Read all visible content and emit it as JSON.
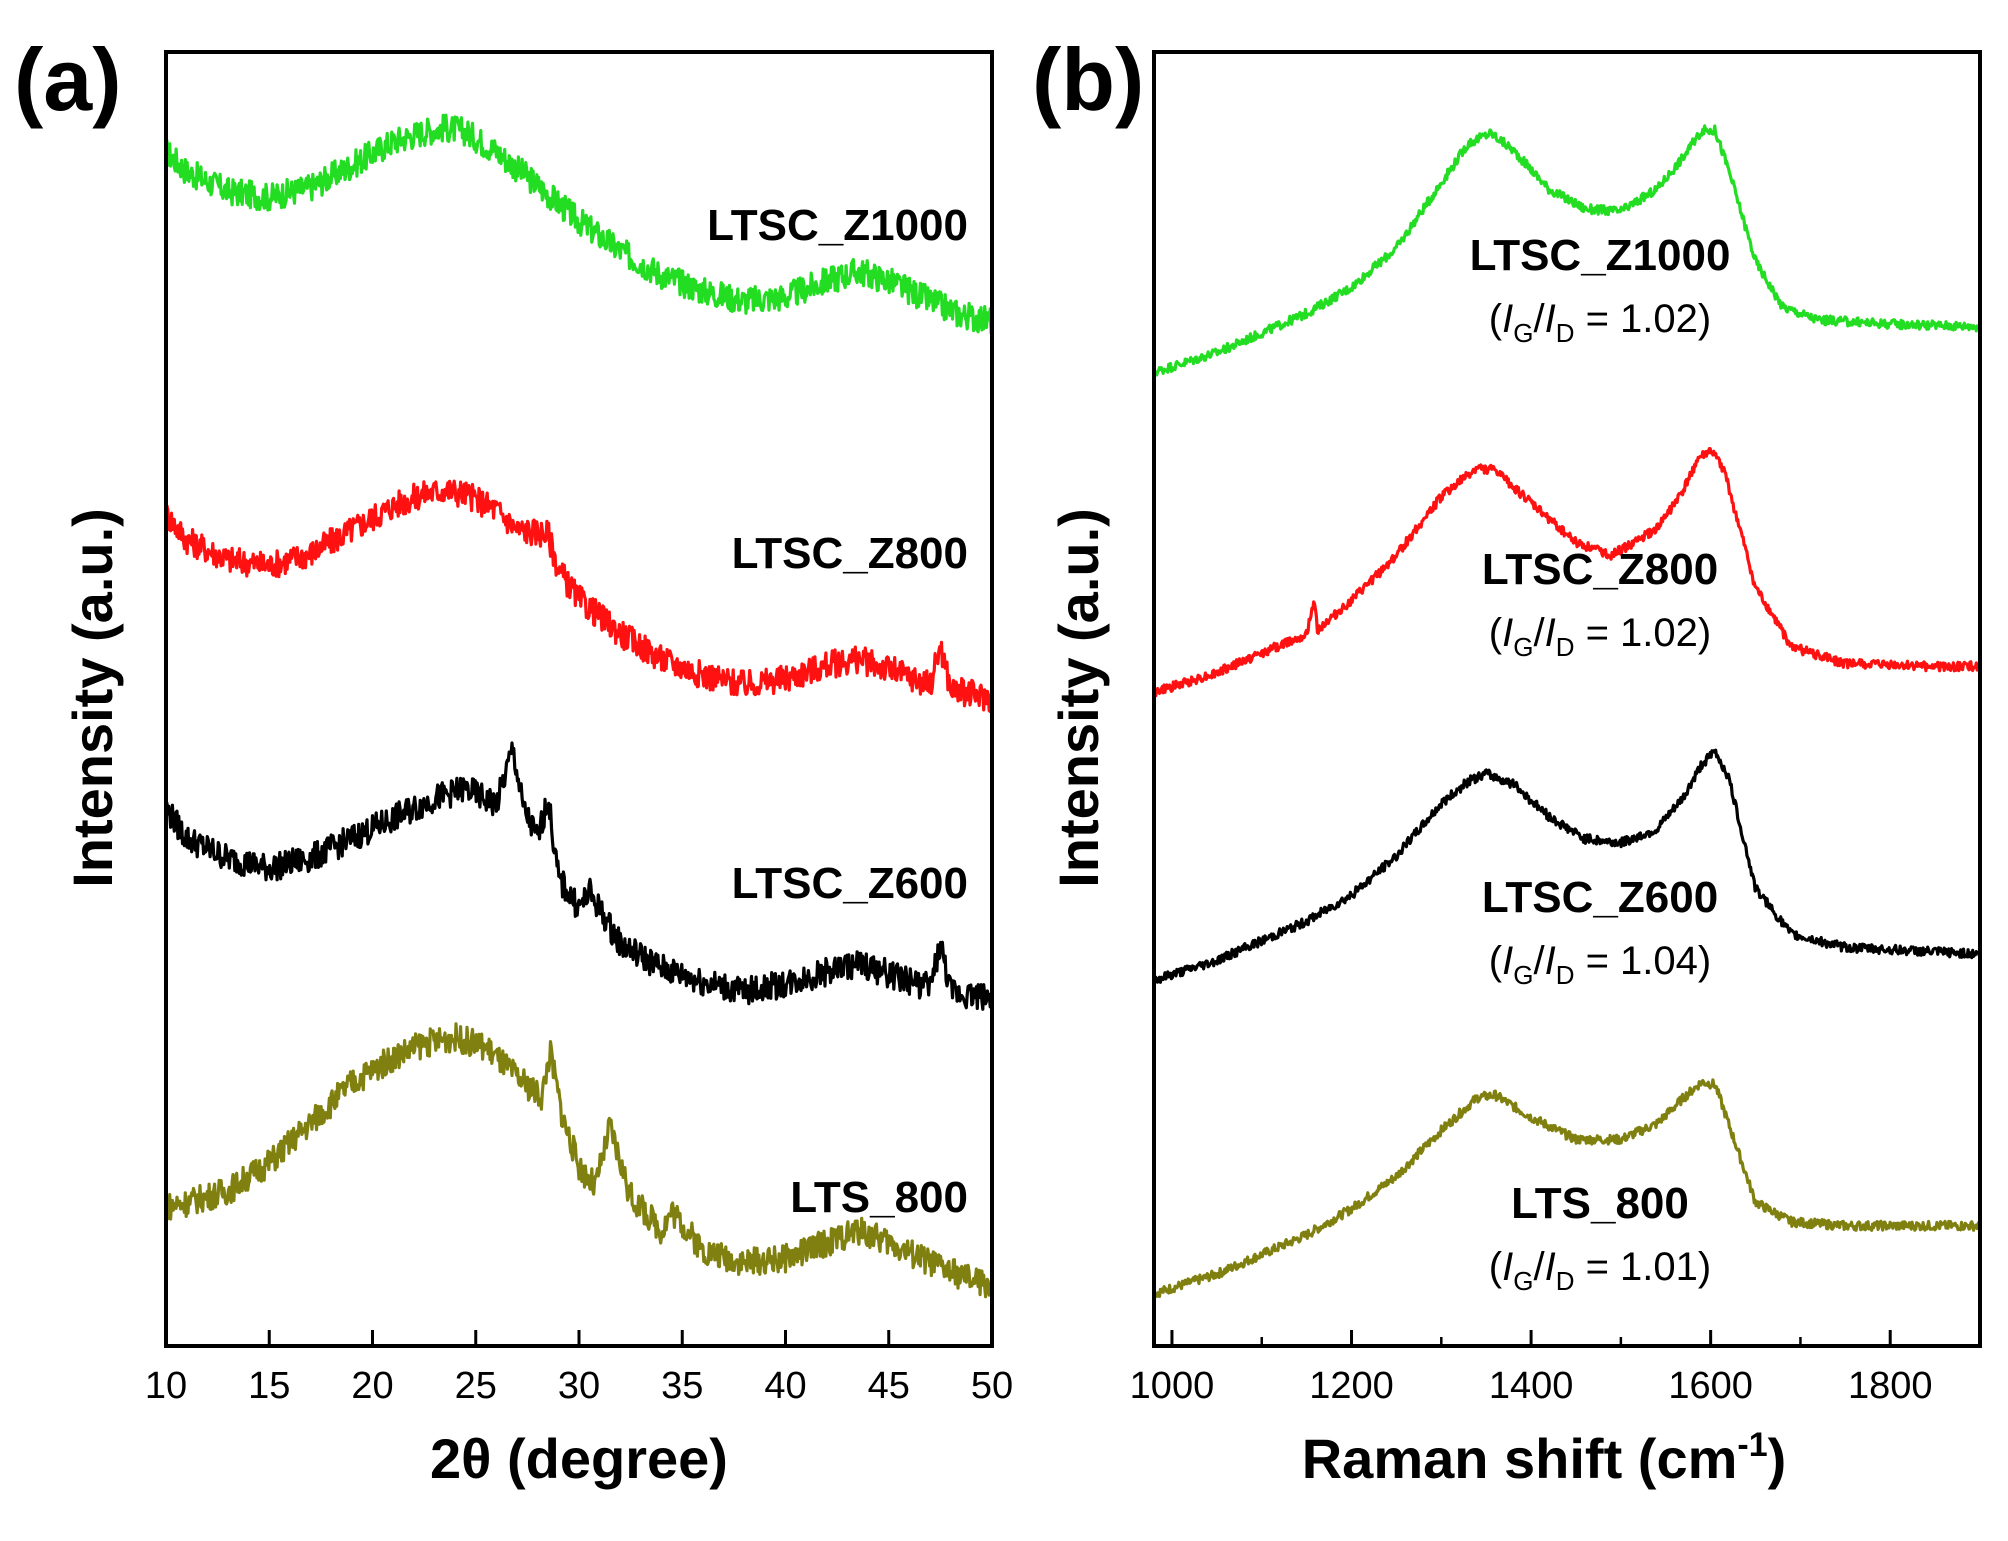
{
  "chart_data": [
    {
      "panel": "(a)",
      "type": "line",
      "xlabel": "2θ (degree)",
      "ylabel": "Intensity (a.u.)",
      "xlim": [
        10,
        50
      ],
      "xticks": [
        10,
        15,
        20,
        25,
        30,
        35,
        40,
        45,
        50
      ],
      "yticks": [],
      "grid": false,
      "series": [
        {
          "name": "LTSC_Z1000",
          "color": "#22dd22",
          "x": [
            10,
            11,
            13,
            15,
            17,
            19,
            21,
            22.5,
            23.5,
            24.5,
            26,
            28,
            30,
            32,
            34,
            36,
            38,
            40,
            42,
            43.5,
            45,
            47,
            48.5,
            50
          ],
          "y": [
            5.7,
            5.6,
            5.5,
            5.47,
            5.52,
            5.63,
            5.75,
            5.8,
            5.82,
            5.8,
            5.7,
            5.53,
            5.35,
            5.2,
            5.08,
            5.0,
            4.95,
            4.97,
            5.05,
            5.1,
            5.05,
            4.95,
            4.88,
            4.85
          ]
        },
        {
          "name": "LTSC_Z800",
          "color": "#ff1111",
          "x": [
            10,
            11,
            13,
            15,
            17,
            19,
            21,
            22.5,
            23.5,
            24.5,
            26,
            27,
            28.5,
            29,
            30,
            32,
            34,
            36,
            38,
            40,
            42,
            43.5,
            45,
            47,
            47.5,
            48,
            50
          ],
          "y": [
            3.88,
            3.75,
            3.65,
            3.62,
            3.68,
            3.8,
            3.92,
            3.98,
            4.0,
            3.98,
            3.9,
            3.8,
            3.78,
            3.6,
            3.45,
            3.28,
            3.15,
            3.07,
            3.02,
            3.05,
            3.12,
            3.15,
            3.1,
            3.02,
            3.22,
            3.0,
            2.95
          ]
        },
        {
          "name": "LTSC_Z600",
          "color": "#000000",
          "x": [
            10,
            11,
            13,
            15,
            17,
            19,
            21,
            23,
            24.5,
            26,
            26.8,
            27.3,
            28,
            28.5,
            29,
            30,
            30.5,
            32,
            34,
            36,
            38,
            40,
            42,
            43.5,
            45,
            47,
            47.5,
            48,
            50
          ],
          "y": [
            2.4,
            2.25,
            2.15,
            2.1,
            2.15,
            2.25,
            2.35,
            2.45,
            2.5,
            2.42,
            2.7,
            2.4,
            2.25,
            2.45,
            2.05,
            1.9,
            1.98,
            1.72,
            1.6,
            1.53,
            1.48,
            1.52,
            1.58,
            1.62,
            1.57,
            1.5,
            1.72,
            1.48,
            1.45
          ]
        },
        {
          "name": "LTS_800",
          "color": "#808010",
          "x": [
            10,
            11,
            13,
            15,
            17,
            19,
            21,
            22.5,
            24,
            25.5,
            27,
            28.2,
            28.6,
            29.2,
            30,
            30.8,
            31.5,
            32.5,
            34,
            34.5,
            36,
            38,
            40,
            42,
            43.5,
            45,
            47,
            48.5,
            50
          ],
          "y": [
            0.4,
            0.42,
            0.48,
            0.62,
            0.82,
            1.02,
            1.15,
            1.22,
            1.25,
            1.2,
            1.05,
            0.95,
            1.18,
            0.85,
            0.6,
            0.5,
            0.8,
            0.45,
            0.28,
            0.38,
            0.18,
            0.12,
            0.14,
            0.22,
            0.28,
            0.22,
            0.12,
            0.05,
            0.0
          ]
        }
      ],
      "annotations": [
        {
          "text": "LTSC_Z1000",
          "series": "LTSC_Z1000"
        },
        {
          "text": "LTSC_Z800",
          "series": "LTSC_Z800"
        },
        {
          "text": "LTSC_Z600",
          "series": "LTSC_Z600"
        },
        {
          "text": "LTS_800",
          "series": "LTS_800"
        }
      ]
    },
    {
      "panel": "(b)",
      "type": "line",
      "xlabel": "Raman shift (cm-1)",
      "xlabel_main": "Raman shift (cm",
      "xlabel_sup": "-1",
      "xlabel_close": ")",
      "ylabel": "Intensity (a.u.)",
      "xlim": [
        980,
        1900
      ],
      "xticks": [
        1000,
        1200,
        1400,
        1600,
        1800
      ],
      "yticks": [],
      "grid": false,
      "series": [
        {
          "name": "LTSC_Z1000",
          "color": "#22dd22",
          "x": [
            980,
            1050,
            1100,
            1150,
            1200,
            1250,
            1300,
            1330,
            1355,
            1380,
            1420,
            1460,
            1500,
            1540,
            1570,
            1590,
            1605,
            1620,
            1650,
            1680,
            1720,
            1800,
            1900
          ],
          "y": [
            5.45,
            5.6,
            5.75,
            5.9,
            6.1,
            6.4,
            6.9,
            7.2,
            7.28,
            7.15,
            6.85,
            6.7,
            6.68,
            6.85,
            7.1,
            7.3,
            7.3,
            7.0,
            6.3,
            5.95,
            5.85,
            5.82,
            5.8
          ]
        },
        {
          "name": "LTSC_Z800",
          "color": "#ff1111",
          "x": [
            980,
            1050,
            1100,
            1150,
            1159,
            1162,
            1200,
            1250,
            1300,
            1340,
            1360,
            1400,
            1450,
            1490,
            1540,
            1570,
            1585,
            1600,
            1615,
            1650,
            1690,
            1750,
            1840,
            1900
          ],
          "y": [
            3.0,
            3.15,
            3.3,
            3.45,
            3.7,
            3.48,
            3.7,
            4.05,
            4.5,
            4.72,
            4.7,
            4.45,
            4.15,
            4.05,
            4.25,
            4.55,
            4.78,
            4.85,
            4.7,
            3.8,
            3.35,
            3.22,
            3.2,
            3.2
          ]
        },
        {
          "name": "LTSC_Z600",
          "color": "#000000",
          "x": [
            980,
            1050,
            1100,
            1150,
            1200,
            1250,
            1300,
            1330,
            1350,
            1380,
            1420,
            1460,
            1500,
            1540,
            1570,
            1590,
            1605,
            1620,
            1650,
            1690,
            1750,
            1840,
            1900
          ],
          "y": [
            0.8,
            0.95,
            1.1,
            1.25,
            1.45,
            1.75,
            2.15,
            2.32,
            2.38,
            2.3,
            2.05,
            1.88,
            1.85,
            1.95,
            2.2,
            2.45,
            2.55,
            2.35,
            1.5,
            1.15,
            1.05,
            1.02,
            1.0
          ]
        },
        {
          "name": "LTS_800",
          "color": "#808010",
          "x": [
            980,
            1050,
            1100,
            1150,
            1200,
            1250,
            1300,
            1340,
            1360,
            1400,
            1450,
            1500,
            1540,
            1570,
            1590,
            1605,
            1620,
            1650,
            1690,
            1750,
            1840,
            1900
          ],
          "y": [
            -1.6,
            -1.45,
            -1.3,
            -1.15,
            -0.95,
            -0.7,
            -0.35,
            -0.1,
            -0.08,
            -0.25,
            -0.42,
            -0.42,
            -0.3,
            -0.1,
            0.02,
            0.0,
            -0.3,
            -0.9,
            -1.05,
            -1.08,
            -1.08,
            -1.08
          ]
        }
      ],
      "annotations": [
        {
          "text": "LTSC_Z1000",
          "series": "LTSC_Z1000",
          "ratio_open": "(",
          "ratio_I1": "I",
          "ratio_sub1": "G",
          "ratio_slash": "/",
          "ratio_I2": "I",
          "ratio_sub2": "D",
          "ratio_tail": " = 1.02)"
        },
        {
          "text": "LTSC_Z800",
          "series": "LTSC_Z800",
          "ratio_open": "(",
          "ratio_I1": "I",
          "ratio_sub1": "G",
          "ratio_slash": "/",
          "ratio_I2": "I",
          "ratio_sub2": "D",
          "ratio_tail": " = 1.02)"
        },
        {
          "text": "LTSC_Z600",
          "series": "LTSC_Z600",
          "ratio_open": "(",
          "ratio_I1": "I",
          "ratio_sub1": "G",
          "ratio_slash": "/",
          "ratio_I2": "I",
          "ratio_sub2": "D",
          "ratio_tail": " = 1.04)"
        },
        {
          "text": "LTS_800",
          "series": "LTS_800",
          "ratio_open": "(",
          "ratio_I1": "I",
          "ratio_sub1": "G",
          "ratio_slash": "/",
          "ratio_I2": "I",
          "ratio_sub2": "D",
          "ratio_tail": " = 1.01)"
        }
      ]
    }
  ]
}
